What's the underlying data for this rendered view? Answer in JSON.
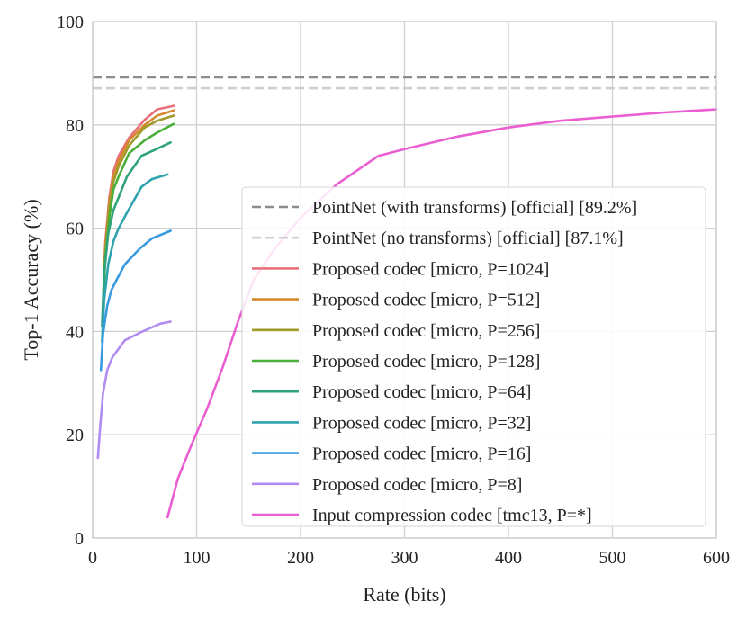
{
  "chart_data": {
    "type": "line",
    "title": "",
    "xlabel": "Rate (bits)",
    "ylabel": "Top-1 Accuracy (%)",
    "xlim": [
      0,
      600
    ],
    "ylim": [
      0,
      100
    ],
    "xticks": [
      0,
      100,
      200,
      300,
      400,
      500,
      600
    ],
    "yticks": [
      0,
      20,
      40,
      60,
      80,
      100
    ],
    "grid": true,
    "legend_position": "center-right",
    "reference_lines": [
      {
        "name": "PointNet (with transforms) [official] [89.2%]",
        "y": 89.2,
        "color": "#8c8c8c",
        "style": "dashed"
      },
      {
        "name": "PointNet (no transforms) [official] [87.1%]",
        "y": 87.1,
        "color": "#cfcfcf",
        "style": "dashed"
      }
    ],
    "series": [
      {
        "name": "Proposed codec [micro, P=1024]",
        "color": "#e8707a",
        "x": [
          10,
          12,
          16,
          20,
          25,
          35,
          50,
          62,
          78
        ],
        "y": [
          45,
          57,
          66,
          71,
          74,
          77.5,
          81,
          83,
          83.7
        ]
      },
      {
        "name": "Proposed codec [micro, P=512]",
        "color": "#d48a2c",
        "x": [
          10,
          12,
          16,
          20,
          25,
          35,
          50,
          62,
          78
        ],
        "y": [
          45,
          56,
          65,
          70,
          73,
          77,
          80,
          81.8,
          82.8
        ]
      },
      {
        "name": "Proposed codec [micro, P=256]",
        "color": "#a09a2a",
        "x": [
          10,
          12,
          16,
          20,
          25,
          35,
          50,
          62,
          78
        ],
        "y": [
          44,
          55,
          64,
          69,
          72,
          76,
          79.5,
          80.8,
          81.8
        ]
      },
      {
        "name": "Proposed codec [micro, P=128]",
        "color": "#4aae3a",
        "x": [
          10,
          12,
          16,
          20,
          25,
          35,
          50,
          62,
          78
        ],
        "y": [
          44,
          54,
          62,
          67.5,
          70,
          74.5,
          77,
          78.5,
          80.2
        ]
      },
      {
        "name": "Proposed codec [micro, P=64]",
        "color": "#2fa37a",
        "x": [
          9,
          11,
          15,
          20,
          25,
          33,
          47,
          60,
          75
        ],
        "y": [
          41,
          51,
          59,
          63.5,
          66,
          70,
          74,
          75.2,
          76.6
        ]
      },
      {
        "name": "Proposed codec [micro, P=32]",
        "color": "#2fa3ae",
        "x": [
          9,
          11,
          15,
          20,
          25,
          33,
          47,
          57,
          72
        ],
        "y": [
          38,
          46,
          53,
          57.5,
          60,
          63,
          68,
          69.5,
          70.4
        ]
      },
      {
        "name": "Proposed codec [micro, P=16]",
        "color": "#3a9ae0",
        "x": [
          8,
          10,
          14,
          18,
          23,
          31,
          45,
          57,
          75
        ],
        "y": [
          32.5,
          39.5,
          45,
          48,
          50,
          53,
          56,
          58,
          59.5
        ]
      },
      {
        "name": "Proposed codec [micro, P=8]",
        "color": "#b08cf0",
        "x": [
          5,
          7,
          10,
          14,
          19,
          31,
          48,
          65,
          75
        ],
        "y": [
          15.5,
          21,
          28,
          32.5,
          35,
          38.3,
          40,
          41.5,
          41.9
        ]
      },
      {
        "name": "Input compression codec [tmc13, P=*]",
        "color": "#ea5ed1",
        "x": [
          72,
          82,
          95,
          110,
          125,
          140,
          155,
          175,
          200,
          235,
          275,
          300,
          350,
          400,
          450,
          500,
          550,
          600
        ],
        "y": [
          4,
          11.5,
          18,
          25,
          33,
          42,
          50,
          56,
          62,
          68.5,
          74,
          75.3,
          77.7,
          79.5,
          80.8,
          81.6,
          82.4,
          83
        ]
      }
    ]
  }
}
